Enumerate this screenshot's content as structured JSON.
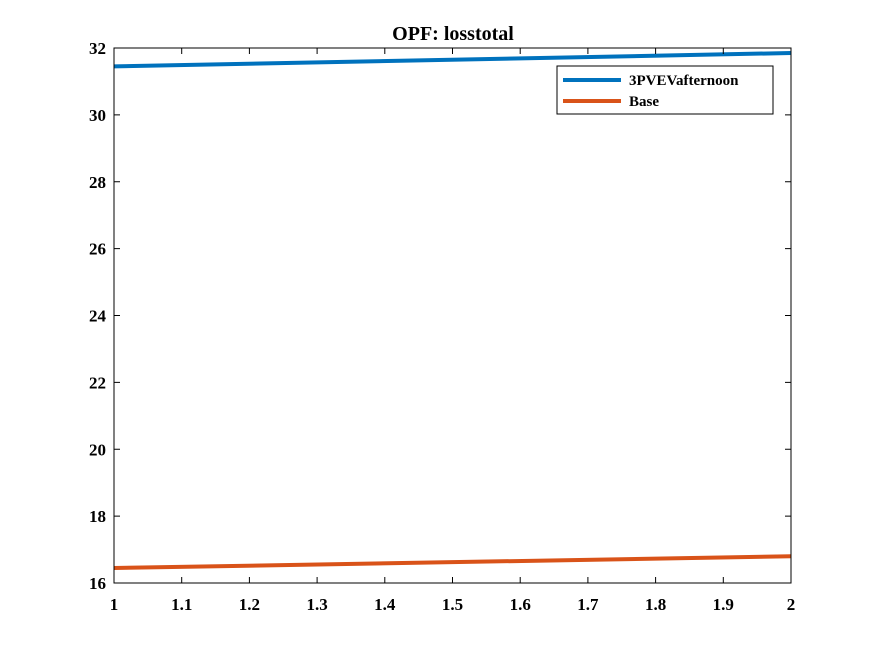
{
  "chart_data": {
    "type": "line",
    "title": "OPF: losstotal",
    "xlabel": "",
    "ylabel": "",
    "xlim": [
      1,
      2
    ],
    "ylim": [
      16,
      32
    ],
    "xticks": [
      1,
      1.1,
      1.2,
      1.3,
      1.4,
      1.5,
      1.6,
      1.7,
      1.8,
      1.9,
      2
    ],
    "xtick_labels": [
      "1",
      "1.1",
      "1.2",
      "1.3",
      "1.4",
      "1.5",
      "1.6",
      "1.7",
      "1.8",
      "1.9",
      "2"
    ],
    "yticks": [
      16,
      18,
      20,
      22,
      24,
      26,
      28,
      30,
      32
    ],
    "ytick_labels": [
      "16",
      "18",
      "20",
      "22",
      "24",
      "26",
      "28",
      "30",
      "32"
    ],
    "grid": false,
    "legend_position": "top-right",
    "series": [
      {
        "name": "3PVEVafternoon",
        "color": "#0072BD",
        "x": [
          1,
          2
        ],
        "y": [
          31.45,
          31.85
        ]
      },
      {
        "name": "Base",
        "color": "#D95319",
        "x": [
          1,
          2
        ],
        "y": [
          16.45,
          16.8
        ]
      }
    ]
  }
}
